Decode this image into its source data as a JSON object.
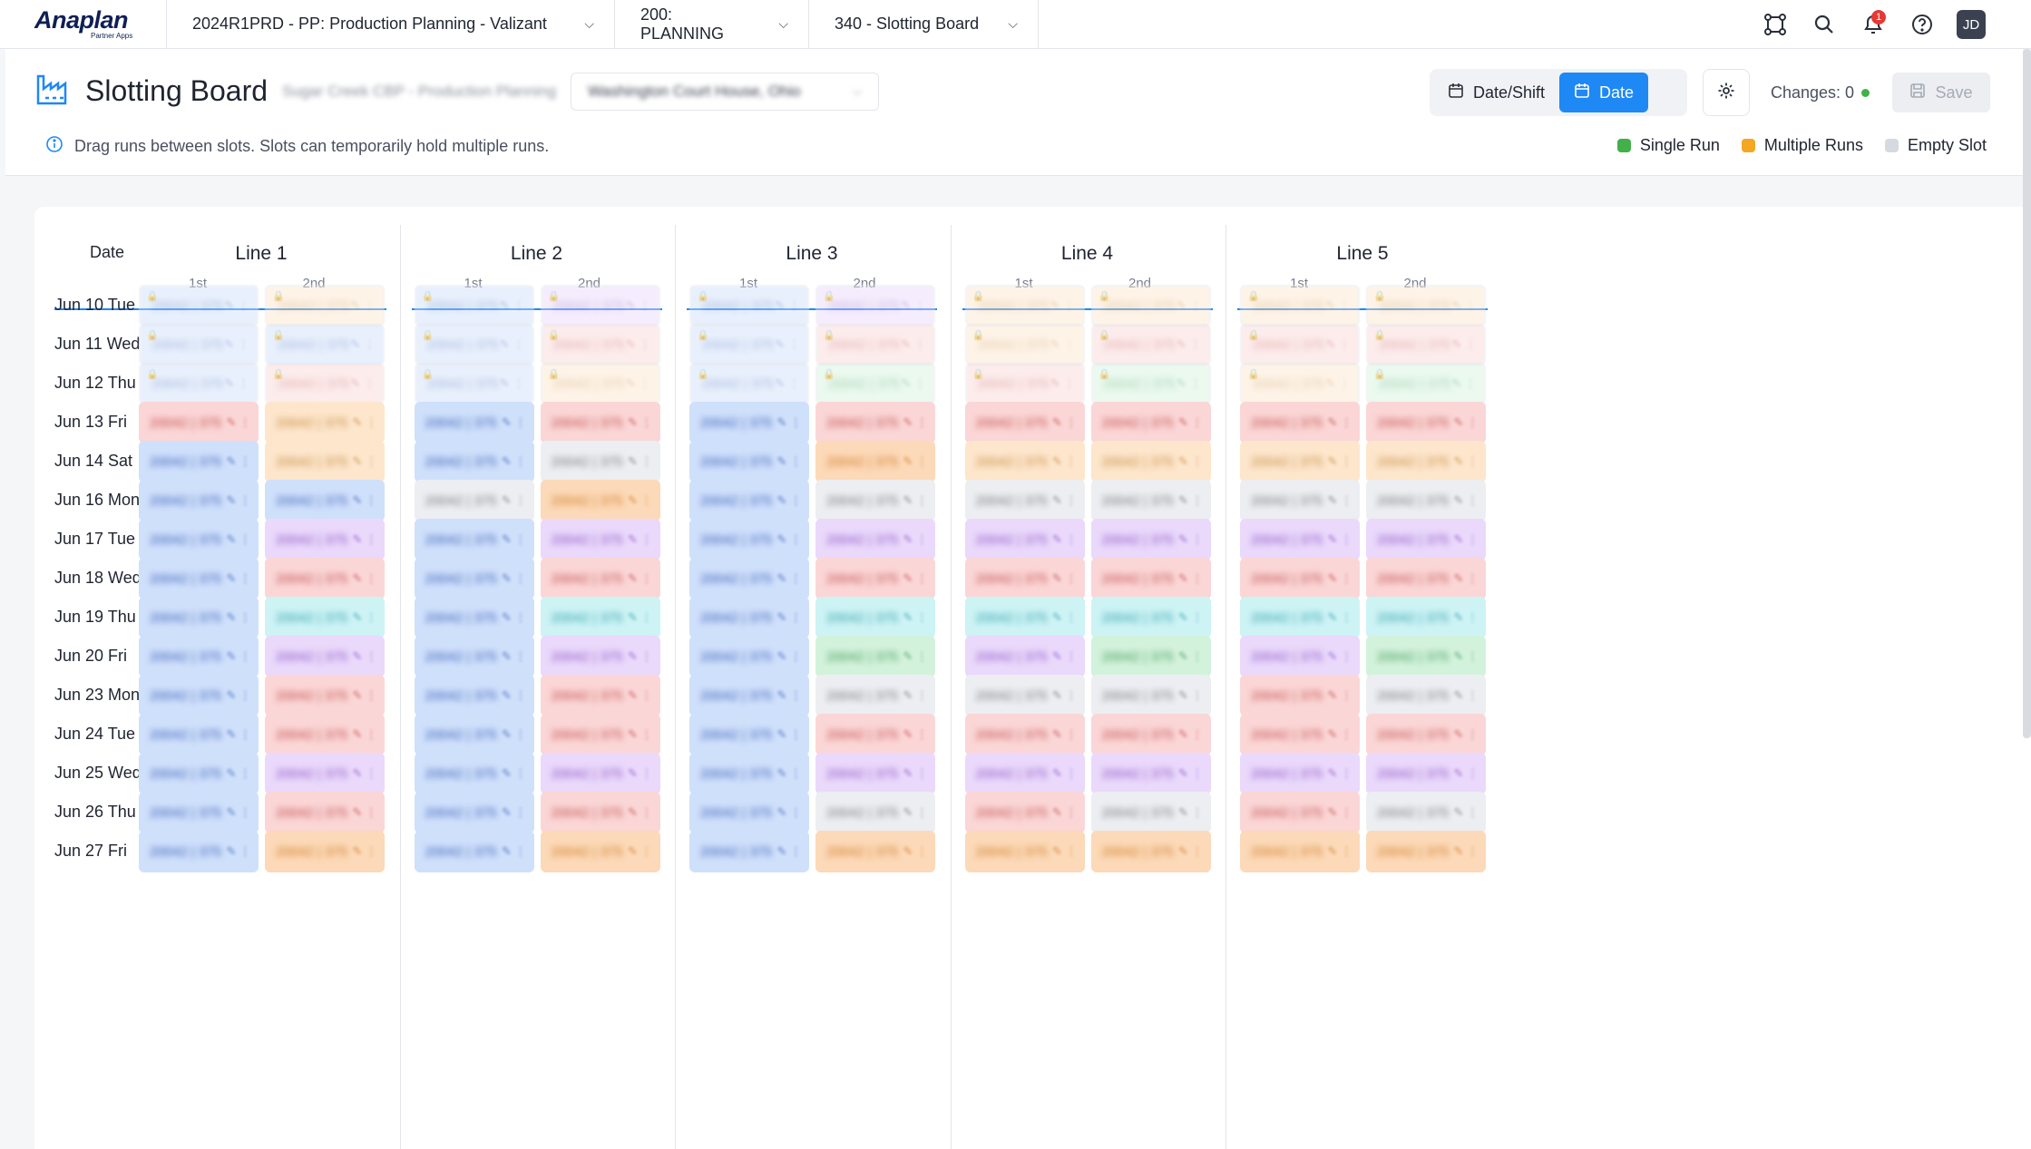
{
  "nav": {
    "logo_word": "Anaplan",
    "logo_sub": "Partner Apps",
    "workspace": "2024R1PRD - PP: Production Planning - Valizant",
    "model": "200: PLANNING",
    "page": "340 - Slotting Board",
    "notification_count": "1",
    "avatar_initials": "JD"
  },
  "header": {
    "title": "Slotting Board",
    "subtitle_blurred": "Sugar Creek CBP - Production Planning",
    "location_blurred": "Washington Court House, Ohio",
    "hint": "Drag runs between slots. Slots can temporarily hold multiple runs.",
    "toggle_date_shift": "Date/Shift",
    "toggle_date": "Date",
    "changes_label": "Changes: 0",
    "save_label": "Save"
  },
  "legend": [
    {
      "label": "Single Run",
      "color": "#43b049"
    },
    {
      "label": "Multiple Runs",
      "color": "#f5a623"
    },
    {
      "label": "Empty Slot",
      "color": "#d6d9e0"
    }
  ],
  "board": {
    "date_header": "Date",
    "lines": [
      {
        "name": "Line 1",
        "shifts": [
          "1st",
          "2nd"
        ]
      },
      {
        "name": "Line 2",
        "shifts": [
          "1st",
          "2nd"
        ]
      },
      {
        "name": "Line 3",
        "shifts": [
          "1st",
          "2nd"
        ]
      },
      {
        "name": "Line 4",
        "shifts": [
          "1st",
          "2nd"
        ]
      },
      {
        "name": "Line 5",
        "shifts": [
          "1st",
          "2nd"
        ]
      }
    ],
    "dates": [
      "Jun 10 Tue",
      "Jun 11 Wed",
      "Jun 12 Thu",
      "Jun 13 Fri",
      "Jun 14 Sat",
      "Jun 16 Mon",
      "Jun 17 Tue",
      "Jun 18 Wed",
      "Jun 19 Thu",
      "Jun 20 Fri",
      "Jun 23 Mon",
      "Jun 24 Tue",
      "Jun 25 Wed",
      "Jun 26 Thu",
      "Jun 27 Fri"
    ],
    "colors": {
      "blue": "#cfe0fb",
      "peach": "#fde6cc",
      "pink": "#fbd6d6",
      "lavender": "#ead9fb",
      "cyan": "#cdf3f5",
      "grey": "#eceef2",
      "green": "#d3f2dc",
      "orange": "#fcd9b8"
    },
    "cells": [
      [
        "blue",
        "peach",
        "blue",
        "lavender",
        "blue",
        "lavender",
        "peach",
        "peach",
        "peach",
        "peach"
      ],
      [
        "blue",
        "blue",
        "blue",
        "pink",
        "blue",
        "pink",
        "peach",
        "pink",
        "pink",
        "pink"
      ],
      [
        "blue",
        "pink",
        "blue",
        "peach",
        "blue",
        "green",
        "pink",
        "green",
        "peach",
        "green"
      ],
      [
        "pink",
        "peach",
        "blue",
        "pink",
        "blue",
        "pink",
        "pink",
        "pink",
        "pink",
        "pink"
      ],
      [
        "blue",
        "peach",
        "blue",
        "grey",
        "blue",
        "orange",
        "peach",
        "peach",
        "peach",
        "peach"
      ],
      [
        "blue",
        "blue",
        "grey",
        "orange",
        "blue",
        "grey",
        "grey",
        "grey",
        "grey",
        "grey"
      ],
      [
        "blue",
        "lavender",
        "blue",
        "lavender",
        "blue",
        "lavender",
        "lavender",
        "lavender",
        "lavender",
        "lavender"
      ],
      [
        "blue",
        "pink",
        "blue",
        "pink",
        "blue",
        "pink",
        "pink",
        "pink",
        "pink",
        "pink"
      ],
      [
        "blue",
        "cyan",
        "blue",
        "cyan",
        "blue",
        "cyan",
        "cyan",
        "cyan",
        "cyan",
        "cyan"
      ],
      [
        "blue",
        "lavender",
        "blue",
        "lavender",
        "blue",
        "green",
        "lavender",
        "green",
        "lavender",
        "green"
      ],
      [
        "blue",
        "pink",
        "blue",
        "pink",
        "blue",
        "grey",
        "grey",
        "grey",
        "pink",
        "grey"
      ],
      [
        "blue",
        "pink",
        "blue",
        "pink",
        "blue",
        "pink",
        "pink",
        "pink",
        "pink",
        "pink"
      ],
      [
        "blue",
        "lavender",
        "blue",
        "lavender",
        "blue",
        "lavender",
        "lavender",
        "lavender",
        "lavender",
        "lavender"
      ],
      [
        "blue",
        "pink",
        "blue",
        "pink",
        "blue",
        "grey",
        "pink",
        "grey",
        "pink",
        "grey"
      ],
      [
        "blue",
        "orange",
        "blue",
        "orange",
        "blue",
        "orange",
        "orange",
        "orange",
        "orange",
        "orange"
      ]
    ],
    "cell_text": "20042 | 375",
    "locked_rows": [
      0,
      1,
      2
    ]
  }
}
